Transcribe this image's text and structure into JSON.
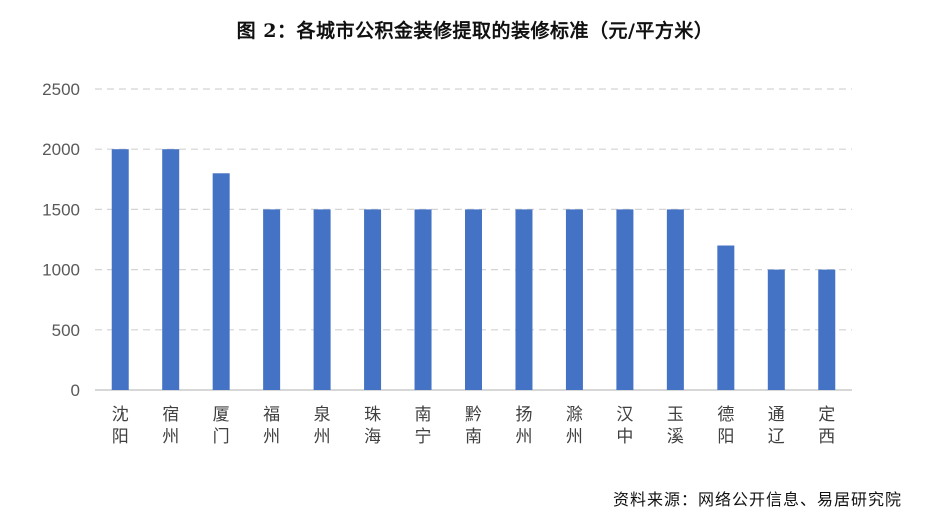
{
  "chart_data": {
    "type": "bar",
    "title": "图 2：各城市公积金装修提取的装修标准（元/平方米）",
    "categories": [
      "沈阳",
      "宿州",
      "厦门",
      "福州",
      "泉州",
      "珠海",
      "南宁",
      "黔南",
      "扬州",
      "滁州",
      "汉中",
      "玉溪",
      "德阳",
      "通辽",
      "定西"
    ],
    "values": [
      2000,
      2000,
      1800,
      1500,
      1500,
      1500,
      1500,
      1500,
      1500,
      1500,
      1500,
      1500,
      1200,
      1000,
      1000
    ],
    "ylim": [
      0,
      2500
    ],
    "yticks": [
      0,
      500,
      1000,
      1500,
      2000,
      2500
    ],
    "xlabel": "",
    "ylabel": "",
    "grid": true,
    "legend": "none",
    "bar_color": "#4472C4"
  },
  "source": "资料来源：网络公开信息、易居研究院"
}
